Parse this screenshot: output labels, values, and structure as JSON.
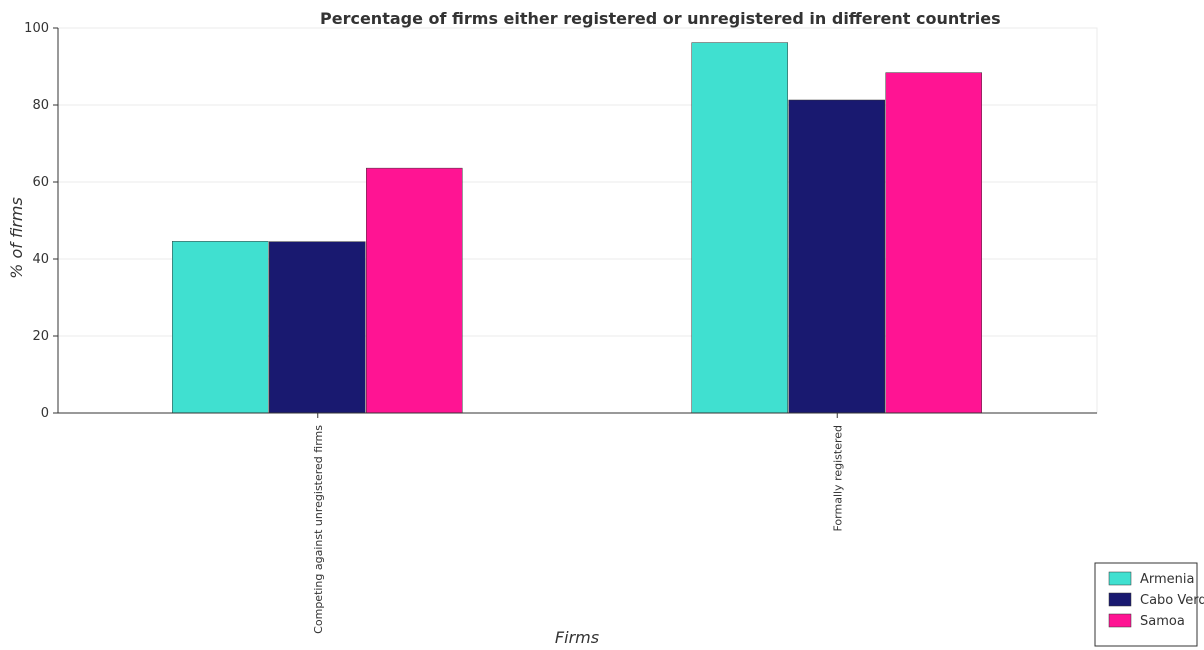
{
  "chart_data": {
    "type": "bar",
    "title": "Percentage of firms either registered or unregistered in different countries",
    "xlabel": "Firms",
    "ylabel": "% of firms",
    "categories": [
      "Competing against unregistered firms",
      "Formally registered"
    ],
    "series": [
      {
        "name": "Armenia",
        "color": "#40e0d0",
        "values": [
          44.6,
          96.2
        ]
      },
      {
        "name": "Cabo Verde",
        "color": "#191970",
        "values": [
          44.5,
          81.3
        ]
      },
      {
        "name": "Samoa",
        "color": "#ff1493",
        "values": [
          63.6,
          88.4
        ]
      }
    ],
    "ylim": [
      0,
      100
    ],
    "yticks": [
      "0",
      "20",
      "40",
      "60",
      "80",
      "100"
    ],
    "grid": true,
    "legend_position": "bottom-right"
  }
}
